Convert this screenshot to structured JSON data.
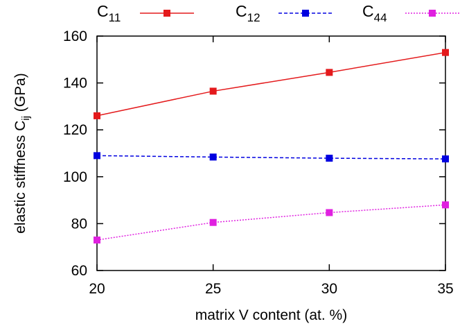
{
  "chart_data": {
    "type": "line",
    "title": "",
    "xlabel": "matrix V content (at. %)",
    "ylabel": {
      "main": "elastic stiffness C",
      "sub": "ij",
      "unit": " (GPa)"
    },
    "x": [
      20,
      25,
      30,
      35
    ],
    "xlim": [
      20,
      35
    ],
    "ylim": [
      60,
      160
    ],
    "xticks": [
      20,
      25,
      30,
      35
    ],
    "yticks": [
      60,
      80,
      100,
      120,
      140,
      160
    ],
    "grid": false,
    "legend_position": "top",
    "series": [
      {
        "name": "C",
        "sub": "11",
        "values": [
          126,
          136.5,
          144.5,
          153
        ],
        "color": "#e41a1c",
        "dash": "solid"
      },
      {
        "name": "C",
        "sub": "12",
        "values": [
          109,
          108.4,
          107.9,
          107.6
        ],
        "color": "#0000e0",
        "dash": "dashed"
      },
      {
        "name": "C",
        "sub": "44",
        "values": [
          73,
          80.5,
          84.7,
          88
        ],
        "color": "#e020e0",
        "dash": "dotted"
      }
    ]
  }
}
